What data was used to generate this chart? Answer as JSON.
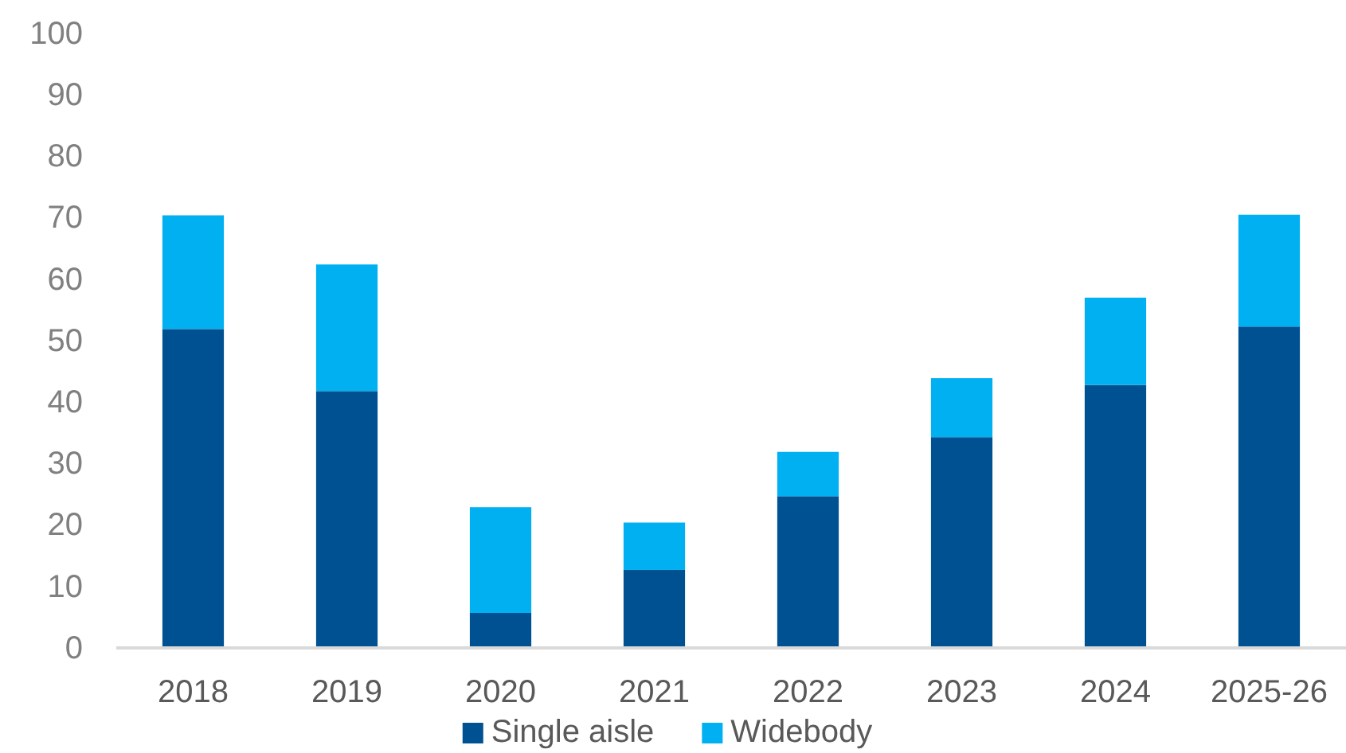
{
  "chart_data": {
    "type": "bar",
    "stacked": true,
    "categories": [
      "2018",
      "2019",
      "2020",
      "2021",
      "2022",
      "2023",
      "2024",
      "2025-26"
    ],
    "series": [
      {
        "name": "Single aisle",
        "color": "#005192",
        "values": [
          51.9,
          41.8,
          5.7,
          12.7,
          24.7,
          34.3,
          42.8,
          52.3
        ]
      },
      {
        "name": "Widebody",
        "color": "#00b0f0",
        "values": [
          18.5,
          20.6,
          17.2,
          7.7,
          7.2,
          9.6,
          14.2,
          18.2
        ]
      }
    ],
    "ylim": [
      0,
      100
    ],
    "yticks": [
      0,
      10,
      20,
      30,
      40,
      50,
      60,
      70,
      80,
      90,
      100
    ],
    "grid": false,
    "legend": "bottom"
  }
}
